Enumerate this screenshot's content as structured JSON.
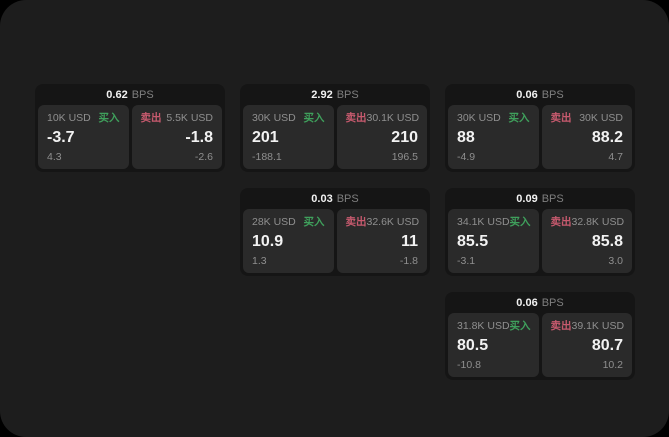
{
  "labels": {
    "bps": "BPS",
    "buy": "买入",
    "sell": "卖出"
  },
  "colors": {
    "page_bg": "#000000",
    "canvas_bg": "#1d1d1d",
    "card_bg": "#151515",
    "panel_bg": "#2a2a2a",
    "buy": "#3fa05c",
    "sell": "#c75a6e",
    "text_primary": "#f2f2f2",
    "text_muted": "#8f8f8f"
  },
  "cards": [
    {
      "row": 1,
      "col": 1,
      "bps": "0.62",
      "buy": {
        "amount": "10K USD",
        "value": "-3.7",
        "sub": "4.3"
      },
      "sell": {
        "amount": "5.5K USD",
        "value": "-1.8",
        "sub": "-2.6"
      }
    },
    {
      "row": 1,
      "col": 2,
      "bps": "2.92",
      "buy": {
        "amount": "30K USD",
        "value": "201",
        "sub": "-188.1"
      },
      "sell": {
        "amount": "30.1K USD",
        "value": "210",
        "sub": "196.5"
      }
    },
    {
      "row": 1,
      "col": 3,
      "bps": "0.06",
      "buy": {
        "amount": "30K USD",
        "value": "88",
        "sub": "-4.9"
      },
      "sell": {
        "amount": "30K USD",
        "value": "88.2",
        "sub": "4.7"
      }
    },
    {
      "row": 2,
      "col": 2,
      "bps": "0.03",
      "buy": {
        "amount": "28K USD",
        "value": "10.9",
        "sub": "1.3"
      },
      "sell": {
        "amount": "32.6K USD",
        "value": "11",
        "sub": "-1.8"
      }
    },
    {
      "row": 2,
      "col": 3,
      "bps": "0.09",
      "buy": {
        "amount": "34.1K USD",
        "value": "85.5",
        "sub": "-3.1"
      },
      "sell": {
        "amount": "32.8K USD",
        "value": "85.8",
        "sub": "3.0"
      }
    },
    {
      "row": 3,
      "col": 3,
      "bps": "0.06",
      "buy": {
        "amount": "31.8K USD",
        "value": "80.5",
        "sub": "-10.8"
      },
      "sell": {
        "amount": "39.1K USD",
        "value": "80.7",
        "sub": "10.2"
      }
    }
  ]
}
